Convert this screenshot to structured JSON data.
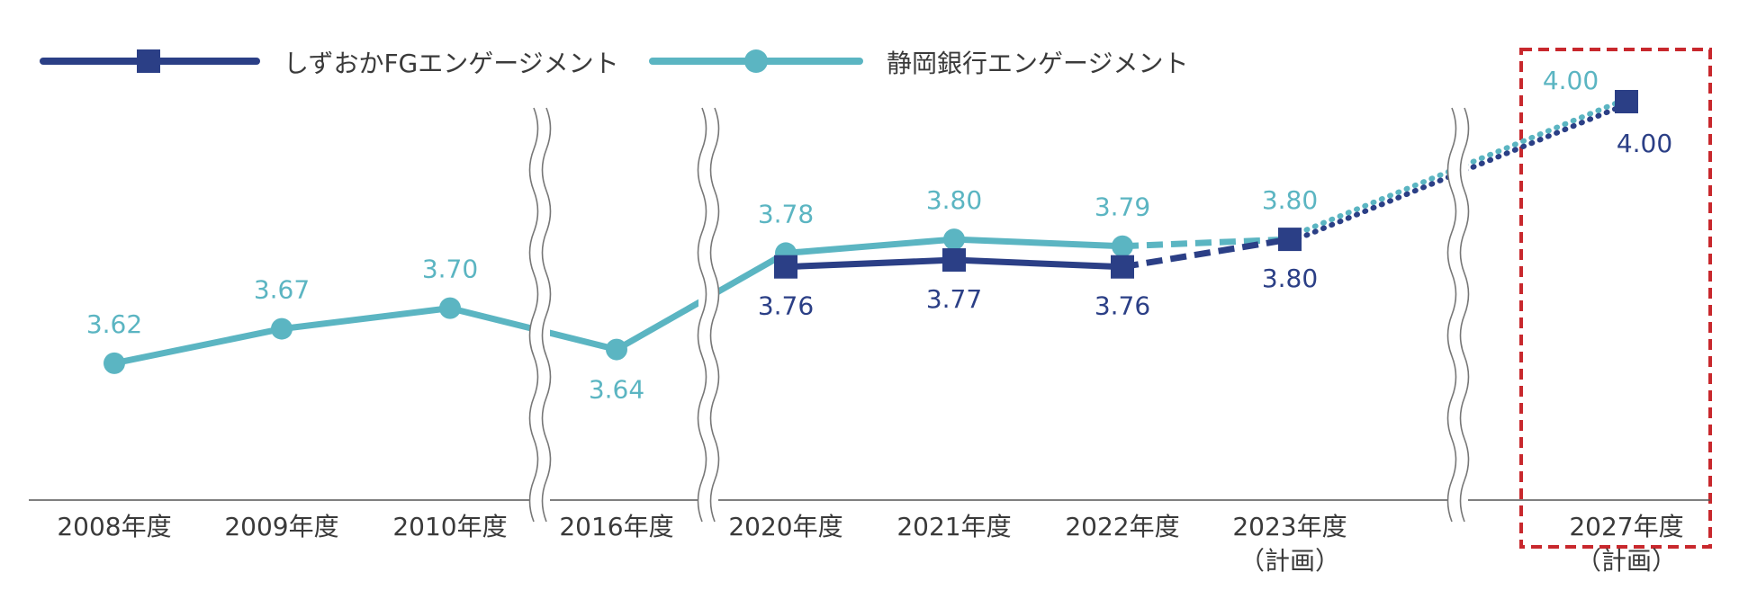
{
  "chart_data": {
    "type": "line",
    "title": "",
    "xlabel": "",
    "ylabel": "",
    "ylim": [
      3.45,
      4.0
    ],
    "grid": false,
    "legend_position": "top-left",
    "colors": {
      "fg": "#2b3f86",
      "bank": "#5bb5c2",
      "highlight": "#c8282d",
      "axis": "#555555",
      "tick": "#3a3a3a",
      "break": "#777777"
    },
    "categories": [
      {
        "label": "2008年度",
        "sub": ""
      },
      {
        "label": "2009年度",
        "sub": ""
      },
      {
        "label": "2010年度",
        "sub": ""
      },
      {
        "label": "2016年度",
        "sub": ""
      },
      {
        "label": "2020年度",
        "sub": ""
      },
      {
        "label": "2021年度",
        "sub": ""
      },
      {
        "label": "2022年度",
        "sub": ""
      },
      {
        "label": "2023年度",
        "sub": "（計画）"
      },
      {
        "label": "2027年度",
        "sub": "（計画）"
      }
    ],
    "series": [
      {
        "name": "しずおかFGエンゲージメント",
        "key": "fg",
        "marker": "square",
        "values": [
          null,
          null,
          null,
          null,
          3.76,
          3.77,
          3.76,
          3.8,
          4.0
        ],
        "labels": [
          "",
          "",
          "",
          "",
          "3.76",
          "3.77",
          "3.76",
          "3.80",
          "4.00"
        ],
        "label_side": "below"
      },
      {
        "name": "静岡銀行エンゲージメント",
        "key": "bank",
        "marker": "circle",
        "values": [
          3.62,
          3.67,
          3.7,
          3.64,
          3.78,
          3.8,
          3.79,
          3.8,
          4.0
        ],
        "labels": [
          "3.62",
          "3.67",
          "3.70",
          "3.64",
          "3.78",
          "3.80",
          "3.79",
          "3.80",
          "4.00"
        ],
        "label_side": "above"
      }
    ],
    "segment_styles": {
      "solid_until_index": 6,
      "dashed_segment": [
        6,
        7
      ],
      "dotted_segment": [
        7,
        8
      ]
    },
    "axis_breaks_after_index": [
      2,
      3,
      7
    ],
    "highlight_category_index": 8
  }
}
